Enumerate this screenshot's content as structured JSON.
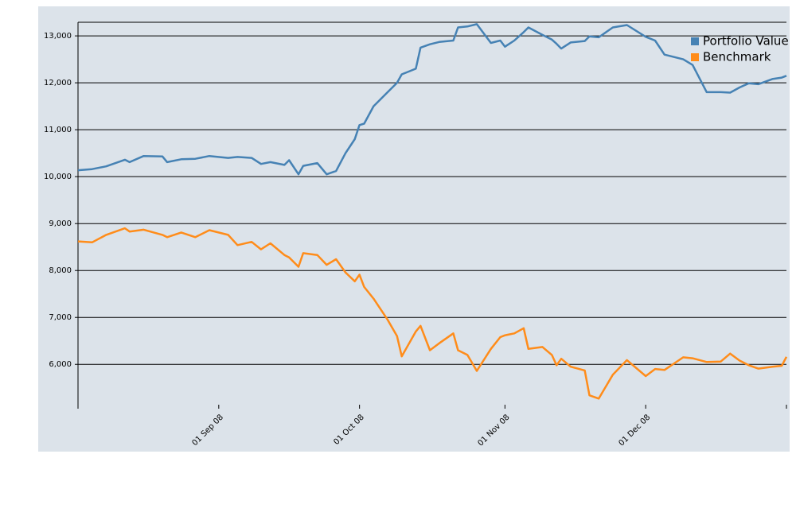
{
  "chart_data": {
    "type": "line",
    "x": [
      "2008-08-02",
      "2008-08-05",
      "2008-08-08",
      "2008-08-12",
      "2008-08-13",
      "2008-08-16",
      "2008-08-20",
      "2008-08-21",
      "2008-08-24",
      "2008-08-27",
      "2008-08-30",
      "2008-09-03",
      "2008-09-05",
      "2008-09-08",
      "2008-09-10",
      "2008-09-12",
      "2008-09-15",
      "2008-09-16",
      "2008-09-18",
      "2008-09-19",
      "2008-09-22",
      "2008-09-24",
      "2008-09-26",
      "2008-09-28",
      "2008-09-30",
      "2008-10-01",
      "2008-10-02",
      "2008-10-04",
      "2008-10-07",
      "2008-10-09",
      "2008-10-10",
      "2008-10-13",
      "2008-10-14",
      "2008-10-16",
      "2008-10-18",
      "2008-10-21",
      "2008-10-22",
      "2008-10-24",
      "2008-10-26",
      "2008-10-29",
      "2008-10-31",
      "2008-11-01",
      "2008-11-03",
      "2008-11-05",
      "2008-11-06",
      "2008-11-09",
      "2008-11-11",
      "2008-11-12",
      "2008-11-13",
      "2008-11-15",
      "2008-11-18",
      "2008-11-19",
      "2008-11-21",
      "2008-11-24",
      "2008-11-27",
      "2008-12-01",
      "2008-12-03",
      "2008-12-05",
      "2008-12-09",
      "2008-12-11",
      "2008-12-14",
      "2008-12-17",
      "2008-12-19",
      "2008-12-21",
      "2008-12-23",
      "2008-12-25",
      "2008-12-28",
      "2008-12-30",
      "2008-12-31"
    ],
    "series": [
      {
        "name": "Portfolio Value",
        "color": "#4682b4",
        "values": [
          10136,
          10160,
          10220,
          10360,
          10310,
          10440,
          10430,
          10310,
          10370,
          10380,
          10440,
          10400,
          10420,
          10400,
          10270,
          10310,
          10250,
          10350,
          10050,
          10230,
          10290,
          10050,
          10120,
          10500,
          10800,
          11100,
          11130,
          11500,
          11800,
          12000,
          12180,
          12300,
          12750,
          12820,
          12870,
          12900,
          13180,
          13200,
          13250,
          12850,
          12900,
          12770,
          12900,
          13080,
          13180,
          13020,
          12920,
          12830,
          12730,
          12860,
          12890,
          12990,
          12970,
          13180,
          13230,
          12980,
          12900,
          12600,
          12500,
          12380,
          11800,
          11800,
          11790,
          11900,
          11990,
          11970,
          12080,
          12110,
          12150
        ]
      },
      {
        "name": "Benchmark",
        "color": "#ff8c1a",
        "values": [
          8620,
          8600,
          8760,
          8900,
          8830,
          8870,
          8760,
          8710,
          8810,
          8710,
          8860,
          8760,
          8540,
          8610,
          8450,
          8580,
          8330,
          8280,
          8080,
          8370,
          8330,
          8120,
          8240,
          7960,
          7770,
          7910,
          7650,
          7400,
          6950,
          6600,
          6170,
          6700,
          6820,
          6300,
          6450,
          6660,
          6300,
          6200,
          5860,
          6330,
          6580,
          6620,
          6660,
          6770,
          6330,
          6370,
          6200,
          5980,
          6120,
          5950,
          5870,
          5340,
          5270,
          5780,
          6090,
          5750,
          5900,
          5880,
          6150,
          6130,
          6050,
          6060,
          6230,
          6080,
          5980,
          5910,
          5950,
          5970,
          6160
        ]
      }
    ],
    "xlim": [
      "2008-08-02",
      "2008-12-31"
    ],
    "xticks": [
      {
        "value": "2008-09-01",
        "label": "01 Sep 08"
      },
      {
        "value": "2008-10-01",
        "label": "01 Oct 08"
      },
      {
        "value": "2008-11-01",
        "label": "01 Nov 08"
      },
      {
        "value": "2008-12-01",
        "label": "01 Dec 08"
      }
    ],
    "ylim": [
      5140,
      13290
    ],
    "yticks": [
      {
        "value": 6000,
        "label": "6,000"
      },
      {
        "value": 7000,
        "label": "7,000"
      },
      {
        "value": 8000,
        "label": "8,000"
      },
      {
        "value": 9000,
        "label": "9,000"
      },
      {
        "value": 10000,
        "label": "10,000"
      },
      {
        "value": 11000,
        "label": "11,000"
      },
      {
        "value": 12000,
        "label": "12,000"
      },
      {
        "value": 13000,
        "label": "13,000"
      }
    ],
    "grid": true,
    "legend": "top-right"
  }
}
